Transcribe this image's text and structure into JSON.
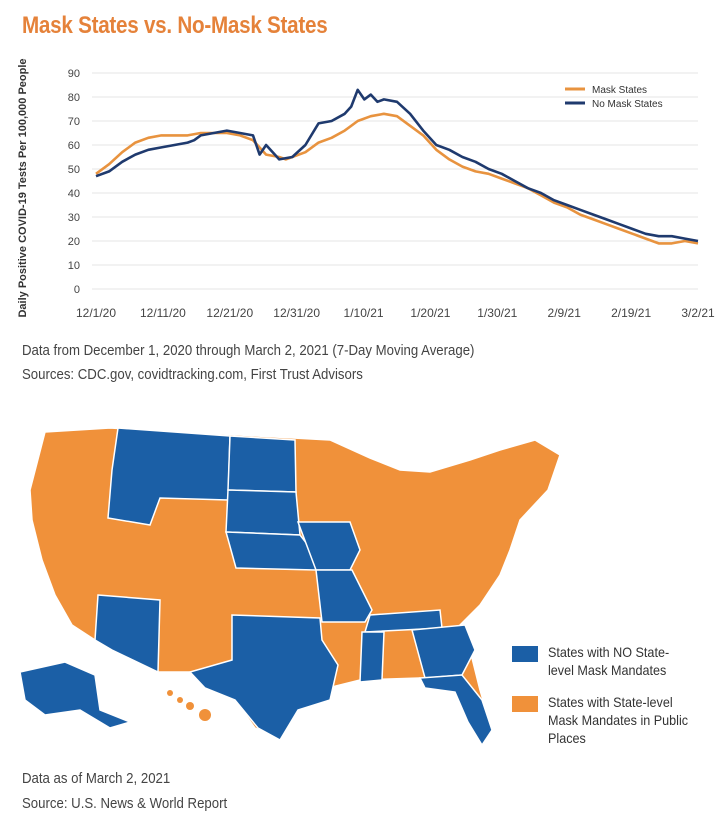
{
  "title": "Mask States vs. No-Mask States",
  "chart_data": {
    "type": "line",
    "title": "Mask States vs. No-Mask States",
    "ylabel": "Daily Positive COVID-19 Tests Per 100,000 People",
    "xlabel": "",
    "ylim": [
      0,
      90
    ],
    "yticks": [
      0,
      10,
      20,
      30,
      40,
      50,
      60,
      70,
      80,
      90
    ],
    "xticks": [
      "12/1/20",
      "12/11/20",
      "12/21/20",
      "12/31/20",
      "1/10/21",
      "1/20/21",
      "1/30/21",
      "2/9/21",
      "2/19/21",
      "3/2/21"
    ],
    "x_day_range": [
      0,
      92
    ],
    "legend_position": "top-right",
    "series": [
      {
        "name": "Mask States",
        "color": "#e8933f",
        "points": [
          [
            0,
            48
          ],
          [
            2,
            52
          ],
          [
            4,
            57
          ],
          [
            6,
            61
          ],
          [
            8,
            63
          ],
          [
            10,
            64
          ],
          [
            12,
            64
          ],
          [
            14,
            64
          ],
          [
            16,
            65
          ],
          [
            18,
            65
          ],
          [
            20,
            65
          ],
          [
            22,
            64
          ],
          [
            24,
            62
          ],
          [
            26,
            56
          ],
          [
            28,
            55
          ],
          [
            29,
            54
          ],
          [
            30,
            55
          ],
          [
            32,
            57
          ],
          [
            34,
            61
          ],
          [
            36,
            63
          ],
          [
            38,
            66
          ],
          [
            40,
            70
          ],
          [
            42,
            72
          ],
          [
            44,
            73
          ],
          [
            46,
            72
          ],
          [
            48,
            68
          ],
          [
            50,
            64
          ],
          [
            52,
            58
          ],
          [
            54,
            54
          ],
          [
            56,
            51
          ],
          [
            58,
            49
          ],
          [
            60,
            48
          ],
          [
            62,
            46
          ],
          [
            64,
            44
          ],
          [
            66,
            42
          ],
          [
            68,
            39
          ],
          [
            70,
            36
          ],
          [
            72,
            34
          ],
          [
            74,
            31
          ],
          [
            76,
            29
          ],
          [
            78,
            27
          ],
          [
            80,
            25
          ],
          [
            82,
            23
          ],
          [
            84,
            21
          ],
          [
            86,
            19
          ],
          [
            88,
            19
          ],
          [
            90,
            20
          ],
          [
            92,
            19
          ]
        ]
      },
      {
        "name": "No Mask States",
        "color": "#1f3a6e",
        "points": [
          [
            0,
            47
          ],
          [
            2,
            49
          ],
          [
            4,
            53
          ],
          [
            6,
            56
          ],
          [
            8,
            58
          ],
          [
            10,
            59
          ],
          [
            12,
            60
          ],
          [
            14,
            61
          ],
          [
            15,
            62
          ],
          [
            16,
            64
          ],
          [
            18,
            65
          ],
          [
            20,
            66
          ],
          [
            22,
            65
          ],
          [
            24,
            64
          ],
          [
            25,
            56
          ],
          [
            26,
            60
          ],
          [
            28,
            54
          ],
          [
            30,
            55
          ],
          [
            32,
            60
          ],
          [
            34,
            69
          ],
          [
            36,
            70
          ],
          [
            38,
            73
          ],
          [
            39,
            76
          ],
          [
            40,
            83
          ],
          [
            41,
            79
          ],
          [
            42,
            81
          ],
          [
            43,
            78
          ],
          [
            44,
            79
          ],
          [
            46,
            78
          ],
          [
            48,
            73
          ],
          [
            50,
            66
          ],
          [
            52,
            60
          ],
          [
            54,
            58
          ],
          [
            56,
            55
          ],
          [
            58,
            53
          ],
          [
            60,
            50
          ],
          [
            62,
            48
          ],
          [
            64,
            45
          ],
          [
            66,
            42
          ],
          [
            68,
            40
          ],
          [
            70,
            37
          ],
          [
            72,
            35
          ],
          [
            74,
            33
          ],
          [
            76,
            31
          ],
          [
            78,
            29
          ],
          [
            80,
            27
          ],
          [
            82,
            25
          ],
          [
            84,
            23
          ],
          [
            86,
            22
          ],
          [
            88,
            22
          ],
          [
            90,
            21
          ],
          [
            92,
            20
          ]
        ]
      }
    ]
  },
  "notes": {
    "line1": "Data from December 1, 2020 through March 2, 2021 (7-Day Moving Average)",
    "line2": "Sources: CDC.gov, covidtracking.com, First Trust Advisors"
  },
  "map": {
    "legend": [
      {
        "label": "States with NO State-level Mask Mandates",
        "color": "#1b5fa6"
      },
      {
        "label": "States with State-level Mask Mandates in Public Places",
        "color": "#f0913a"
      }
    ],
    "footer_line1": "Data as of March 2, 2021",
    "footer_line2": "Source: U.S. News & World Report"
  }
}
